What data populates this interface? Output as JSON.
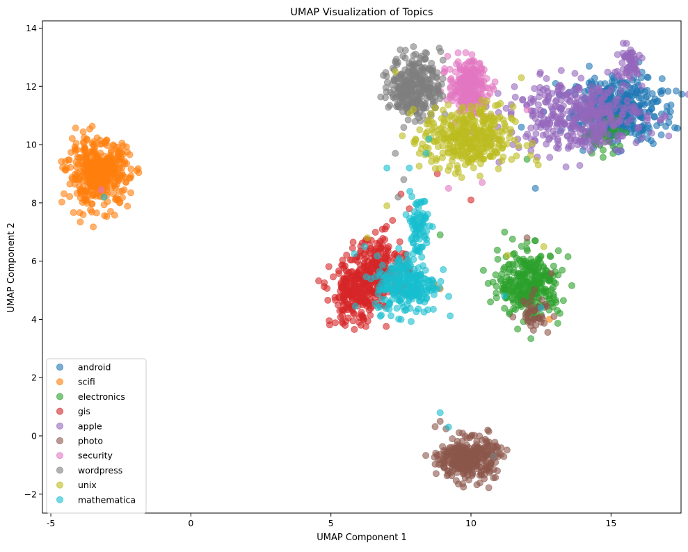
{
  "chart_data": {
    "type": "scatter",
    "title": "UMAP Visualization of Topics",
    "xlabel": "UMAP Component 1",
    "ylabel": "UMAP Component 2",
    "xlim": [
      -5.3,
      17.5
    ],
    "ylim": [
      -2.65,
      14.25
    ],
    "xticks": [
      -5,
      0,
      5,
      10,
      15
    ],
    "yticks": [
      -2,
      0,
      2,
      4,
      6,
      8,
      10,
      12,
      14
    ],
    "grid": false,
    "legend_position": "lower-left",
    "marker_alpha": 0.6,
    "series": [
      {
        "name": "android",
        "color": "#1f77b4",
        "clusters": [
          {
            "center": [
              15.2,
              11.2
            ],
            "spread": [
              0.8,
              0.55
            ],
            "count": 420
          }
        ],
        "points": [
          [
            12.3,
            8.5
          ],
          [
            14.0,
            9.8
          ],
          [
            11.8,
            10.6
          ],
          [
            13.5,
            11.8
          ]
        ]
      },
      {
        "name": "scifi",
        "color": "#ff7f0e",
        "clusters": [
          {
            "center": [
              -3.3,
              9.0
            ],
            "spread": [
              0.55,
              0.55
            ],
            "count": 420
          }
        ],
        "points": [
          [
            8.9,
            5.05
          ],
          [
            12.8,
            4.0
          ],
          [
            8.7,
            5.2
          ]
        ]
      },
      {
        "name": "electronics",
        "color": "#2ca02c",
        "clusters": [
          {
            "center": [
              12.1,
              5.2
            ],
            "spread": [
              0.55,
              0.55
            ],
            "count": 320
          },
          {
            "center": [
              14.7,
              10.3
            ],
            "spread": [
              0.4,
              0.3
            ],
            "count": 40
          }
        ],
        "points": [
          [
            11.2,
            7.0
          ],
          [
            12.3,
            6.7
          ],
          [
            8.9,
            6.9
          ],
          [
            12.0,
            9.5
          ],
          [
            11.5,
            5.9
          ]
        ]
      },
      {
        "name": "gis",
        "color": "#d62728",
        "clusters": [
          {
            "center": [
              5.9,
              4.9
            ],
            "spread": [
              0.45,
              0.55
            ],
            "count": 260
          },
          {
            "center": [
              6.8,
              5.9
            ],
            "spread": [
              0.45,
              0.5
            ],
            "count": 170
          }
        ],
        "points": [
          [
            7.2,
            7.4
          ],
          [
            7.5,
            8.3
          ],
          [
            8.8,
            9.0
          ],
          [
            10.0,
            8.1
          ],
          [
            7.8,
            7.8
          ]
        ]
      },
      {
        "name": "apple",
        "color": "#9467bd",
        "clusters": [
          {
            "center": [
              13.8,
              11.0
            ],
            "spread": [
              1.2,
              0.6
            ],
            "count": 380
          },
          {
            "center": [
              15.6,
              12.8
            ],
            "spread": [
              0.25,
              0.3
            ],
            "count": 60
          }
        ],
        "points": [
          [
            11.5,
            10.0
          ],
          [
            12.3,
            10.9
          ],
          [
            11.0,
            9.4
          ],
          [
            16.0,
            10.6
          ]
        ]
      },
      {
        "name": "photo",
        "color": "#8c564b",
        "clusters": [
          {
            "center": [
              9.9,
              -0.8
            ],
            "spread": [
              0.5,
              0.35
            ],
            "count": 340
          },
          {
            "center": [
              12.3,
              4.3
            ],
            "spread": [
              0.3,
              0.3
            ],
            "count": 40
          }
        ],
        "points": [
          [
            8.9,
            0.5
          ],
          [
            10.6,
            0.2
          ],
          [
            11.0,
            -0.6
          ],
          [
            12.0,
            6.8
          ],
          [
            12.5,
            3.9
          ]
        ]
      },
      {
        "name": "security",
        "color": "#e377c2",
        "clusters": [
          {
            "center": [
              9.9,
              12.0
            ],
            "spread": [
              0.35,
              0.45
            ],
            "count": 240
          }
        ],
        "points": [
          [
            -3.2,
            8.45
          ],
          [
            9.2,
            8.5
          ],
          [
            12.0,
            11.2
          ],
          [
            10.4,
            8.7
          ]
        ]
      },
      {
        "name": "wordpress",
        "color": "#7f7f7f",
        "clusters": [
          {
            "center": [
              8.0,
              12.0
            ],
            "spread": [
              0.45,
              0.55
            ],
            "count": 300
          }
        ],
        "points": [
          [
            7.6,
            8.8
          ],
          [
            7.4,
            8.2
          ],
          [
            7.3,
            9.7
          ],
          [
            9.0,
            12.9
          ],
          [
            10.8,
            -0.7
          ]
        ]
      },
      {
        "name": "unix",
        "color": "#bcbd22",
        "clusters": [
          {
            "center": [
              9.9,
              10.2
            ],
            "spread": [
              0.8,
              0.55
            ],
            "count": 380
          }
        ],
        "points": [
          [
            7.0,
            7.9
          ],
          [
            11.3,
            6.2
          ],
          [
            12.4,
            9.3
          ],
          [
            11.8,
            12.3
          ],
          [
            7.3,
            12.5
          ],
          [
            12.6,
            6.5
          ],
          [
            6.3,
            6.8
          ]
        ]
      },
      {
        "name": "mathematica",
        "color": "#17becf",
        "clusters": [
          {
            "center": [
              7.7,
              5.2
            ],
            "spread": [
              0.55,
              0.5
            ],
            "count": 250
          },
          {
            "center": [
              8.1,
              7.2
            ],
            "spread": [
              0.2,
              0.55
            ],
            "count": 80
          }
        ],
        "points": [
          [
            6.2,
            6.5
          ],
          [
            7.8,
            9.2
          ],
          [
            8.5,
            10.2
          ],
          [
            7.0,
            9.2
          ],
          [
            9.2,
            0.3
          ],
          [
            8.9,
            0.8
          ],
          [
            -3.1,
            8.2
          ],
          [
            11.2,
            4.8
          ],
          [
            12.5,
            4.4
          ],
          [
            8.4,
            9.7
          ]
        ]
      }
    ]
  }
}
